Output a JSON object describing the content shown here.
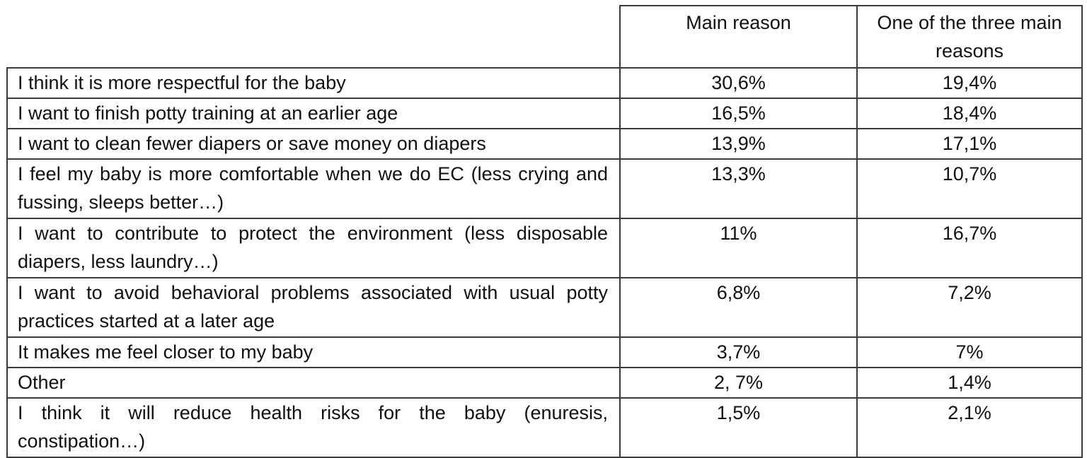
{
  "table": {
    "headers": {
      "reason": "",
      "main": "Main reason",
      "three": "One of the three main reasons"
    },
    "rows": [
      {
        "reason": "I think it is more respectful for the baby",
        "main": "30,6%",
        "three": "19,4%"
      },
      {
        "reason": "I want to finish potty training at an earlier age",
        "main": "16,5%",
        "three": "18,4%"
      },
      {
        "reason": "I want to clean fewer diapers or save money on diapers",
        "main": "13,9%",
        "three": "17,1%"
      },
      {
        "reason": "I feel my baby is more comfortable when we do EC (less crying and fussing, sleeps better…)",
        "main": "13,3%",
        "three": "10,7%"
      },
      {
        "reason": "I want to contribute to protect the environment (less disposable diapers, less laundry…)",
        "main": "11%",
        "three": "16,7%"
      },
      {
        "reason": "I want to avoid behavioral problems associated with usual potty practices started at a later age",
        "main": "6,8%",
        "three": "7,2%"
      },
      {
        "reason": "It makes me feel closer to my baby",
        "main": "3,7%",
        "three": "7%"
      },
      {
        "reason": "Other",
        "main": "2, 7%",
        "three": "1,4%"
      },
      {
        "reason": "I think it will reduce health risks for the baby (enuresis, constipation…)",
        "main": "1,5%",
        "three": "2,1%"
      }
    ]
  }
}
